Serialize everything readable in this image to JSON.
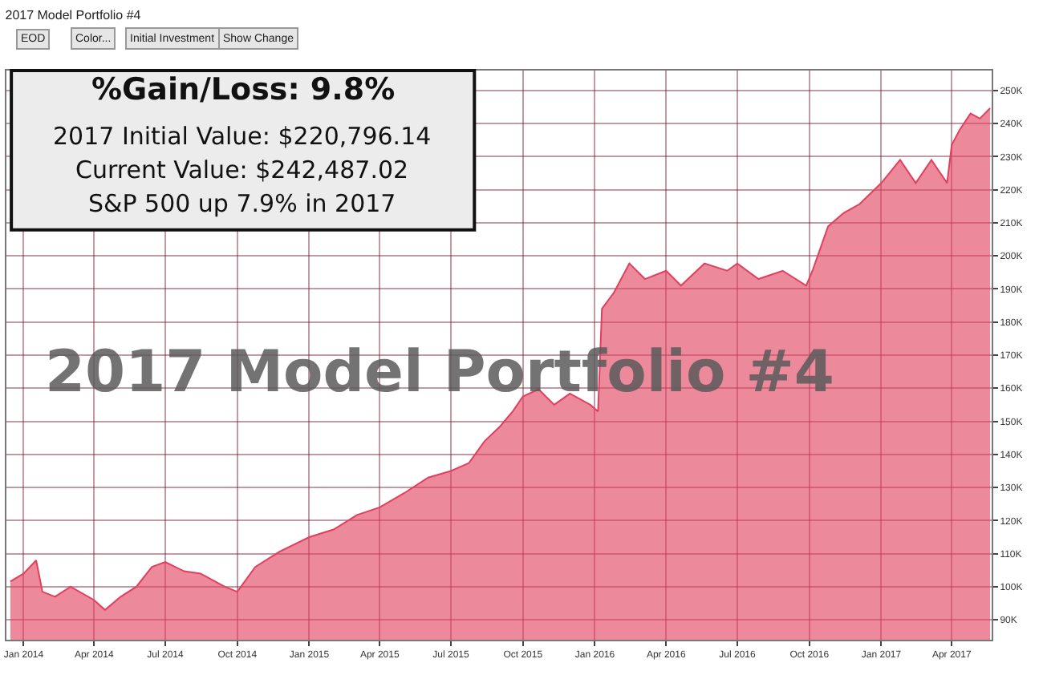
{
  "chart_data": {
    "type": "area",
    "title": "2017 Model Portfolio #4",
    "annotations": [
      "%Gain/Loss: 9.8%",
      "2017 Initial Value: $220,796.14",
      "Current Value: $242,487.02",
      "S&P 500 up 7.9% in 2017",
      "2017 Model Portfolio #4",
      "EOD",
      "Color...",
      "Initial Investment",
      "Show Change"
    ],
    "x": [
      "2013-12-15",
      "2014-01-01",
      "2014-01-17",
      "2014-01-25",
      "2014-02-10",
      "2014-03-02",
      "2014-04-01",
      "2014-04-15",
      "2014-05-05",
      "2014-05-25",
      "2014-06-14",
      "2014-07-01",
      "2014-07-25",
      "2014-08-15",
      "2014-09-15",
      "2014-10-01",
      "2014-10-24",
      "2014-11-24",
      "2015-01-01",
      "2015-02-01",
      "2015-03-03",
      "2015-04-01",
      "2015-05-03",
      "2015-06-02",
      "2015-07-01",
      "2015-07-24",
      "2015-08-13",
      "2015-09-02",
      "2015-09-18",
      "2015-10-01",
      "2015-10-21",
      "2015-11-10",
      "2015-11-30",
      "2015-12-26",
      "2016-01-05",
      "2016-01-10",
      "2016-01-25",
      "2016-02-14",
      "2016-03-05",
      "2016-04-01",
      "2016-04-20",
      "2016-05-20",
      "2016-06-18",
      "2016-07-01",
      "2016-07-28",
      "2016-08-28",
      "2016-09-27",
      "2016-10-05",
      "2016-10-25",
      "2016-11-14",
      "2016-12-04",
      "2017-01-01",
      "2017-01-25",
      "2017-02-14",
      "2017-03-06",
      "2017-03-26",
      "2017-04-01",
      "2017-04-11",
      "2017-04-25",
      "2017-05-07",
      "2017-05-20"
    ],
    "series": [
      {
        "color": "#e0405e",
        "values": [
          101600,
          104000,
          108000,
          98500,
          97000,
          100000,
          96000,
          93000,
          97000,
          100000,
          106000,
          107500,
          104700,
          104000,
          100000,
          98500,
          106000,
          110600,
          115000,
          117300,
          121700,
          124000,
          128400,
          133000,
          135000,
          137400,
          144000,
          148500,
          153000,
          157500,
          159700,
          155000,
          158400,
          155000,
          153000,
          184000,
          188800,
          197700,
          193000,
          195500,
          191000,
          197700,
          195500,
          197700,
          193000,
          195500,
          191000,
          195500,
          208900,
          213000,
          215600,
          222000,
          229000,
          222000,
          229000,
          222000,
          233500,
          238000,
          243000,
          241500,
          244600
        ]
      }
    ],
    "xlim": [
      "2013-12-10",
      "2017-05-22"
    ],
    "xticks": [
      {
        "value": "2014-01-01",
        "label": "Jan 2014"
      },
      {
        "value": "2014-04-01",
        "label": "Apr 2014"
      },
      {
        "value": "2014-07-01",
        "label": "Jul 2014"
      },
      {
        "value": "2014-10-01",
        "label": "Oct 2014"
      },
      {
        "value": "2015-01-01",
        "label": "Jan 2015"
      },
      {
        "value": "2015-04-01",
        "label": "Apr 2015"
      },
      {
        "value": "2015-07-01",
        "label": "Jul 2015"
      },
      {
        "value": "2015-10-01",
        "label": "Oct 2015"
      },
      {
        "value": "2016-01-01",
        "label": "Jan 2016"
      },
      {
        "value": "2016-04-01",
        "label": "Apr 2016"
      },
      {
        "value": "2016-07-01",
        "label": "Jul 2016"
      },
      {
        "value": "2016-10-01",
        "label": "Oct 2016"
      },
      {
        "value": "2017-01-01",
        "label": "Jan 2017"
      },
      {
        "value": "2017-04-01",
        "label": "Apr 2017"
      }
    ],
    "ylim": [
      84000,
      256000
    ],
    "yticks": [
      {
        "value": 90000,
        "label": "90K"
      },
      {
        "value": 100000,
        "label": "100K"
      },
      {
        "value": 110000,
        "label": "110K"
      },
      {
        "value": 120000,
        "label": "120K"
      },
      {
        "value": 130000,
        "label": "130K"
      },
      {
        "value": 140000,
        "label": "140K"
      },
      {
        "value": 150000,
        "label": "150K"
      },
      {
        "value": 160000,
        "label": "160K"
      },
      {
        "value": 170000,
        "label": "170K"
      },
      {
        "value": 180000,
        "label": "180K"
      },
      {
        "value": 190000,
        "label": "190K"
      },
      {
        "value": 200000,
        "label": "200K"
      },
      {
        "value": 210000,
        "label": "210K"
      },
      {
        "value": 220000,
        "label": "220K"
      },
      {
        "value": 230000,
        "label": "230K"
      },
      {
        "value": 240000,
        "label": "240K"
      },
      {
        "value": 250000,
        "label": "250K"
      }
    ],
    "grid": true,
    "legend": false
  }
}
